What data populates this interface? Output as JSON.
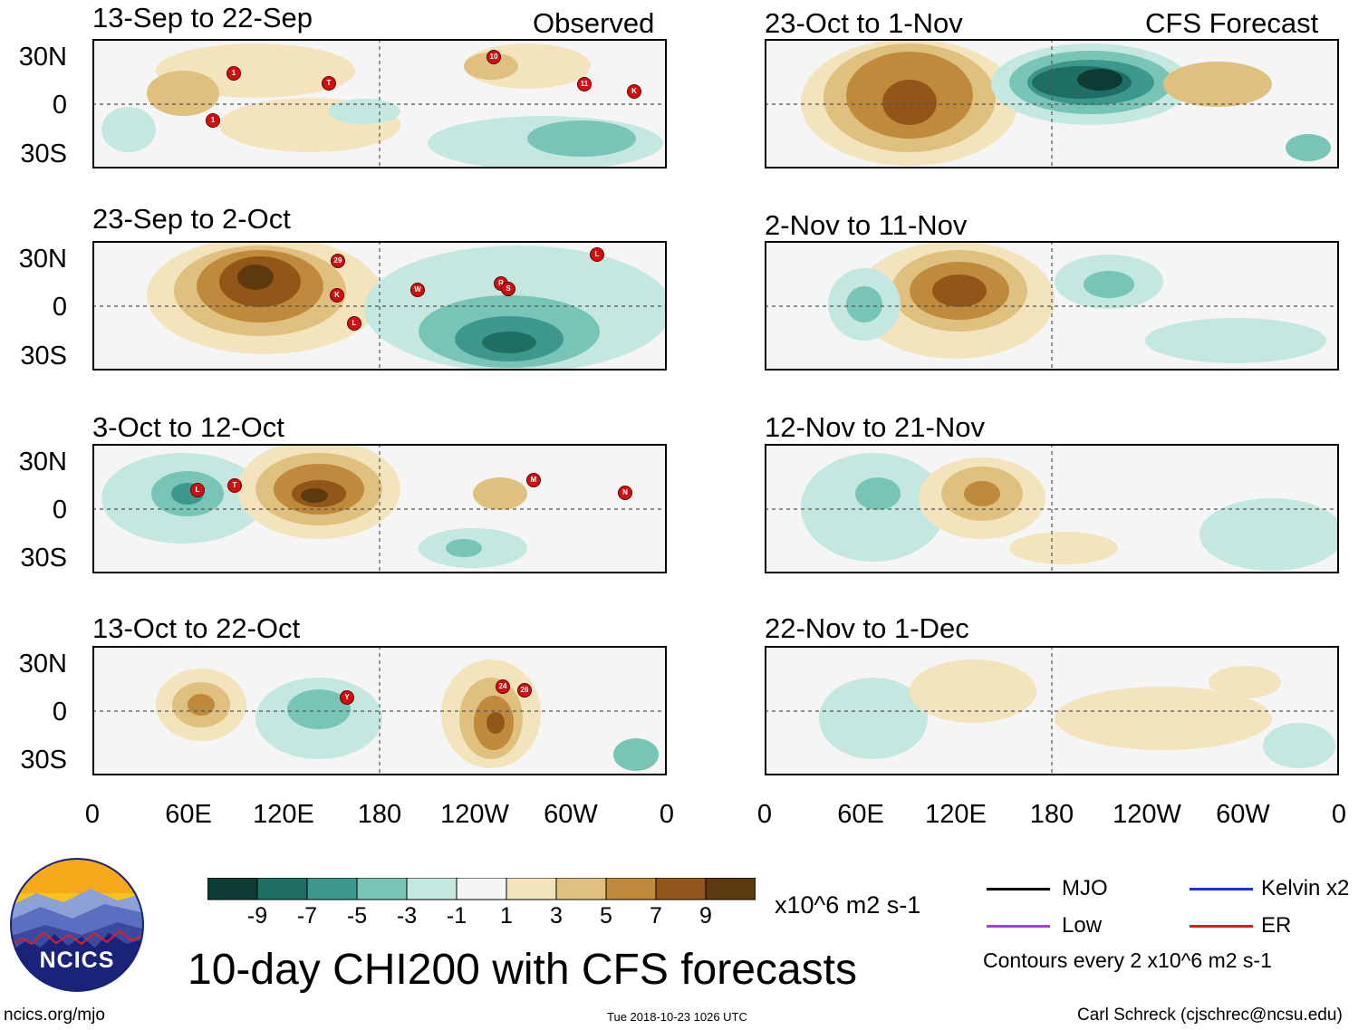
{
  "colors": {
    "scale": [
      "#0b3b33",
      "#1f6e63",
      "#3d978c",
      "#78c4b6",
      "#c4e8df",
      "#f5f5f5",
      "#f3e4bd",
      "#dfc07f",
      "#bf8a3c",
      "#925618",
      "#5c3a0e"
    ],
    "land": "#666666"
  },
  "columns": {
    "left_header": "Observed",
    "right_header": "CFS Forecast"
  },
  "panels": [
    {
      "title": "13-Sep to 22-Sep",
      "col": 0,
      "row": 0,
      "storms": [
        "1",
        "T",
        "10",
        "11",
        "K",
        "1"
      ]
    },
    {
      "title": "23-Sep to 2-Oct",
      "col": 0,
      "row": 1,
      "storms": [
        "29",
        "K",
        "L",
        "W",
        "R",
        "S",
        "L"
      ]
    },
    {
      "title": "3-Oct to 12-Oct",
      "col": 0,
      "row": 2,
      "storms": [
        "L",
        "T",
        "M",
        "N"
      ]
    },
    {
      "title": "13-Oct to 22-Oct",
      "col": 0,
      "row": 3,
      "storms": [
        "Y",
        "24",
        "26"
      ]
    },
    {
      "title": "23-Oct to 1-Nov",
      "col": 1,
      "row": 0,
      "storms": []
    },
    {
      "title": "2-Nov to 11-Nov",
      "col": 1,
      "row": 1,
      "storms": []
    },
    {
      "title": "12-Nov to 21-Nov",
      "col": 1,
      "row": 2,
      "storms": []
    },
    {
      "title": "22-Nov to 1-Dec",
      "col": 1,
      "row": 3,
      "storms": []
    }
  ],
  "axes": {
    "y_labels": [
      "30N",
      "0",
      "30S"
    ],
    "x_labels": [
      "0",
      "60E",
      "120E",
      "180",
      "120W",
      "60W",
      "0"
    ]
  },
  "colorbar": {
    "labels": [
      "-9",
      "-7",
      "-5",
      "-3",
      "-1",
      "1",
      "3",
      "5",
      "7",
      "9"
    ],
    "units": "x10^6 m2 s-1"
  },
  "legend": {
    "items": [
      {
        "label": "MJO",
        "color": "#000000"
      },
      {
        "label": "Kelvin x2",
        "color": "#1a2ee6"
      },
      {
        "label": "Low",
        "color": "#a040e0"
      },
      {
        "label": "ER",
        "color": "#e01a1a"
      }
    ],
    "contour_note": "Contours every 2 x10^6 m2 s-1"
  },
  "logo": {
    "text": "NCICS"
  },
  "main_title": "10-day CHI200 with CFS forecasts",
  "footer": {
    "url": "ncics.org/mjo",
    "timestamp": "Tue 2018-10-23 1026 UTC",
    "author": "Carl Schreck (cjschrec@ncsu.edu)"
  }
}
